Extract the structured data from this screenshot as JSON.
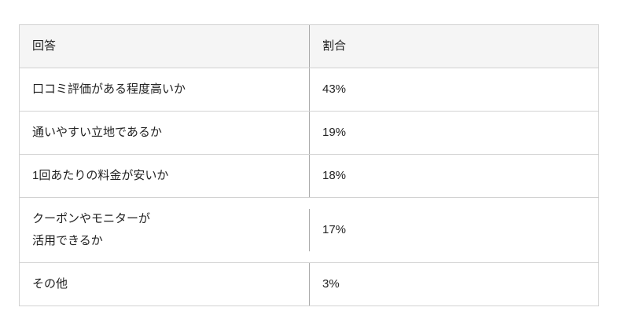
{
  "table": {
    "headers": {
      "answer": "回答",
      "ratio": "割合"
    },
    "rows": [
      {
        "answer": "口コミ評価がある程度高いか",
        "ratio": "43%"
      },
      {
        "answer": "通いやすい立地であるか",
        "ratio": "19%"
      },
      {
        "answer": "1回あたりの料金が安いか",
        "ratio": "18%"
      },
      {
        "answer": "クーポンやモニターが\n活用できるか",
        "ratio": "17%"
      },
      {
        "answer": "その他",
        "ratio": "3%"
      }
    ]
  },
  "colors": {
    "header_background": "#f5f5f5",
    "border": "#d2d2d2",
    "column_divider": "#ababab",
    "text": "#222222",
    "page_background": "#ffffff"
  },
  "chart_data": {
    "type": "table",
    "title": "",
    "columns": [
      "回答",
      "割合"
    ],
    "categories": [
      "口コミ評価がある程度高いか",
      "通いやすい立地であるか",
      "1回あたりの料金が安いか",
      "クーポンやモニターが活用できるか",
      "その他"
    ],
    "values": [
      43,
      19,
      18,
      17,
      3
    ],
    "value_unit": "%",
    "rows": [
      [
        "口コミ評価がある程度高いか",
        "43%"
      ],
      [
        "通いやすい立地であるか",
        "19%"
      ],
      [
        "1回あたりの料金が安いか",
        "18%"
      ],
      [
        "クーポンやモニターが活用できるか",
        "17%"
      ],
      [
        "その他",
        "3%"
      ]
    ]
  }
}
